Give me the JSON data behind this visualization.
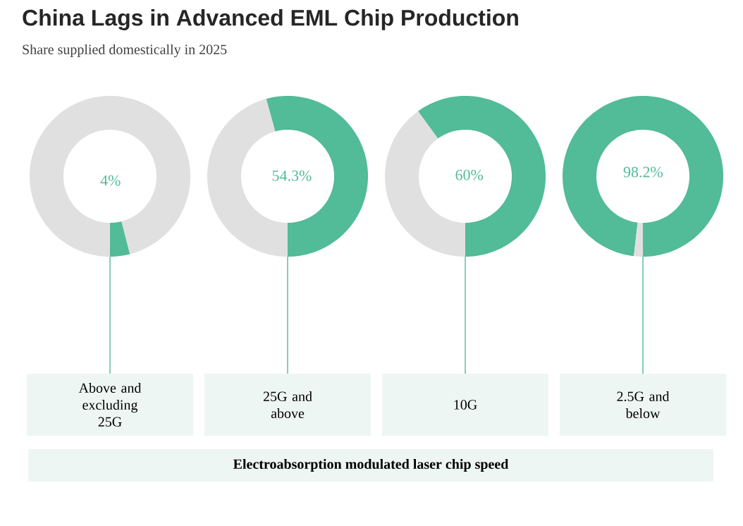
{
  "chart_data": [
    {
      "type": "donut",
      "title": "China Lags in Advanced EML Chip Production",
      "subtitle": "Share supplied domestically in 2025",
      "xlabel": "Above and excluding 25G",
      "categories": [
        null,
        null
      ],
      "values": [
        4,
        96
      ],
      "colors": [
        "#52bb98",
        "#e0e0e0"
      ],
      "value_labels": [
        "4%",
        null
      ],
      "annotations": [
        "Electroabsorption modulated laser chip speed"
      ]
    },
    {
      "type": "donut",
      "xlabel": "25G and above",
      "categories": [
        null,
        null
      ],
      "values": [
        54.3,
        45.7
      ],
      "colors": [
        "#52bb98",
        "#e0e0e0"
      ],
      "value_labels": [
        "54.3%",
        null
      ]
    },
    {
      "type": "donut",
      "xlabel": "10G",
      "categories": [
        null,
        null
      ],
      "values": [
        60,
        40
      ],
      "colors": [
        "#52bb98",
        "#e0e0e0"
      ],
      "value_labels": [
        "60%",
        null
      ]
    },
    {
      "type": "donut",
      "xlabel": "2.5G and below",
      "categories": [
        null,
        null
      ],
      "values": [
        98.2,
        1.8
      ],
      "colors": [
        "#52bb98",
        "#e0e0e0"
      ],
      "value_labels": [
        "98.2%",
        null
      ]
    }
  ]
}
